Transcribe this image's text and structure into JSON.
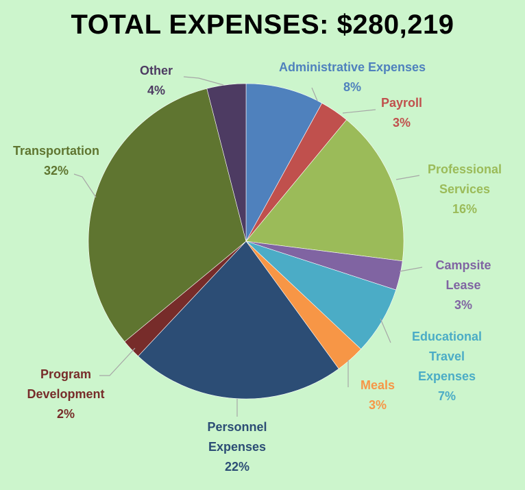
{
  "chart_data": {
    "type": "pie",
    "title": "TOTAL EXPENSES: $280,219",
    "slices": [
      {
        "label": [
          "Administrative Expenses"
        ],
        "value": 8,
        "display": "8%",
        "color": "#4f81bd",
        "label_color": "#4f81bd"
      },
      {
        "label": [
          "Payroll"
        ],
        "value": 3,
        "display": "3%",
        "color": "#c0504d",
        "label_color": "#c0504d"
      },
      {
        "label": [
          "Professional",
          "Services"
        ],
        "value": 16,
        "display": "16%",
        "color": "#9bbb59",
        "label_color": "#9bbb59"
      },
      {
        "label": [
          "Campsite",
          "Lease"
        ],
        "value": 3,
        "display": "3%",
        "color": "#8064a2",
        "label_color": "#8064a2"
      },
      {
        "label": [
          "Educational",
          "Travel",
          "Expenses"
        ],
        "value": 7,
        "display": "7%",
        "color": "#4bacc6",
        "label_color": "#4bacc6"
      },
      {
        "label": [
          "Meals"
        ],
        "value": 3,
        "display": "3%",
        "color": "#f79646",
        "label_color": "#f79646"
      },
      {
        "label": [
          "Personnel",
          "Expenses"
        ],
        "value": 22,
        "display": "22%",
        "color": "#2c4d75",
        "label_color": "#2c4d75"
      },
      {
        "label": [
          "Program",
          "Development"
        ],
        "value": 2,
        "display": "2%",
        "color": "#772c2a",
        "label_color": "#772c2a"
      },
      {
        "label": [
          "Transportation"
        ],
        "value": 32,
        "display": "32%",
        "color": "#5f7530",
        "label_color": "#5f7530"
      },
      {
        "label": [
          "Other"
        ],
        "value": 4,
        "display": "4%",
        "color": "#4d3b62",
        "label_color": "#4d3b62"
      }
    ],
    "start_angle": "12 o'clock",
    "direction": "clockwise",
    "legend": "none"
  }
}
